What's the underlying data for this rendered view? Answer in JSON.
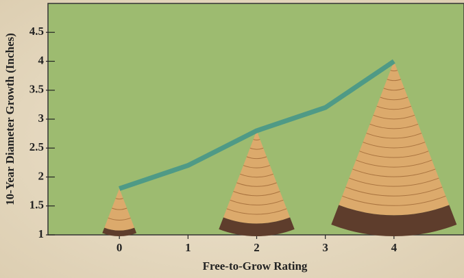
{
  "chart_data": {
    "type": "line",
    "x": [
      0,
      1,
      2,
      3,
      4
    ],
    "series": [
      {
        "color": "#4f9a86",
        "values": [
          1.8,
          2.2,
          2.8,
          3.2,
          4.0
        ]
      }
    ],
    "xlabel": "Free-to-Grow Rating",
    "ylabel": "10-Year Diameter Growth (Inches)",
    "xlim": [
      -1.04,
      5.02
    ],
    "ylim": [
      1,
      5
    ],
    "xticks": [
      0,
      1,
      2,
      3,
      4
    ],
    "yticks": [
      1,
      1.5,
      2,
      2.5,
      3,
      3.5,
      4,
      4.5
    ],
    "plot_background": "#9dbb70"
  }
}
